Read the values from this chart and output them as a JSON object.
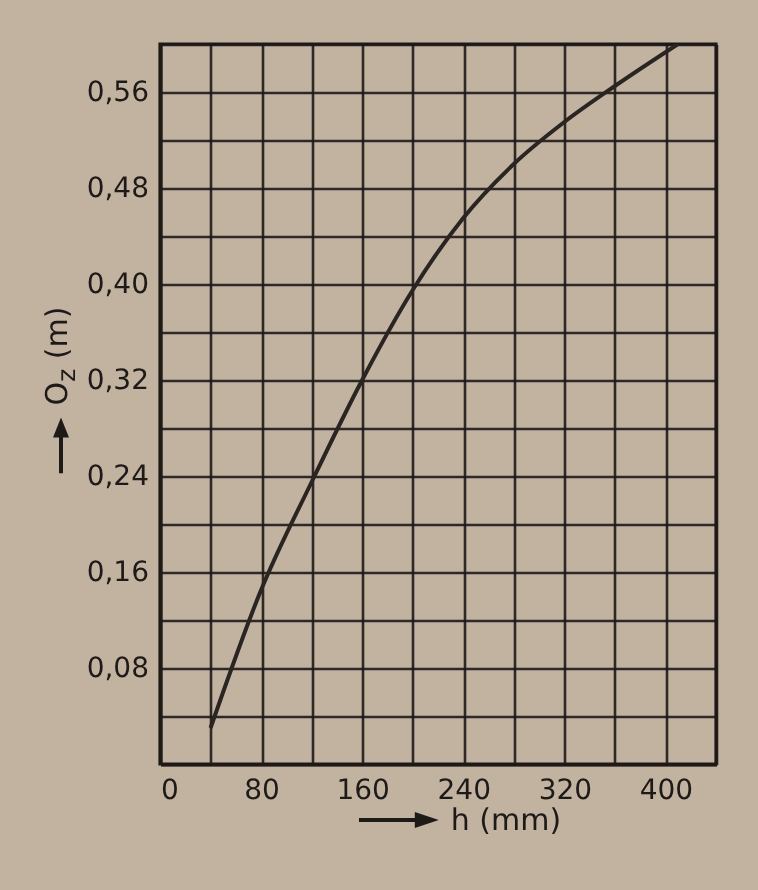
{
  "chart_data": {
    "type": "line",
    "xlabel": "h (mm)",
    "ylabel": "O$_{z}$ (m)",
    "x": [
      40,
      80,
      120,
      160,
      200,
      240,
      280,
      320,
      360,
      410
    ],
    "values": [
      0.03,
      0.145,
      0.235,
      0.32,
      0.395,
      0.455,
      0.5,
      0.535,
      0.565,
      0.6
    ],
    "color": "#2a2522",
    "xlim": [
      0,
      440
    ],
    "ylim": [
      0,
      0.6
    ],
    "xticks": [
      0,
      {
        "value": 40,
        "label": null
      },
      80,
      {
        "value": 120,
        "label": null
      },
      160,
      {
        "value": 200,
        "label": null
      },
      240,
      {
        "value": 280,
        "label": null
      },
      320,
      {
        "value": 360,
        "label": null
      },
      400,
      {
        "value": 440,
        "label": null
      }
    ],
    "yticks": [
      {
        "value": 0,
        "label": null
      },
      {
        "value": 0.04,
        "label": null
      },
      {
        "value": 0.08,
        "label": "0,08"
      },
      {
        "value": 0.12,
        "label": null
      },
      {
        "value": 0.16,
        "label": "0,16"
      },
      {
        "value": 0.2,
        "label": null
      },
      {
        "value": 0.24,
        "label": "0,24"
      },
      {
        "value": 0.28,
        "label": null
      },
      {
        "value": 0.32,
        "label": "0,32"
      },
      {
        "value": 0.36,
        "label": null
      },
      {
        "value": 0.4,
        "label": "0,40"
      },
      {
        "value": 0.44,
        "label": null
      },
      {
        "value": 0.48,
        "label": "0,48"
      },
      {
        "value": 0.52,
        "label": null
      },
      {
        "value": 0.56,
        "label": "0,56"
      },
      {
        "value": 0.6,
        "label": null
      }
    ],
    "grid": true
  }
}
